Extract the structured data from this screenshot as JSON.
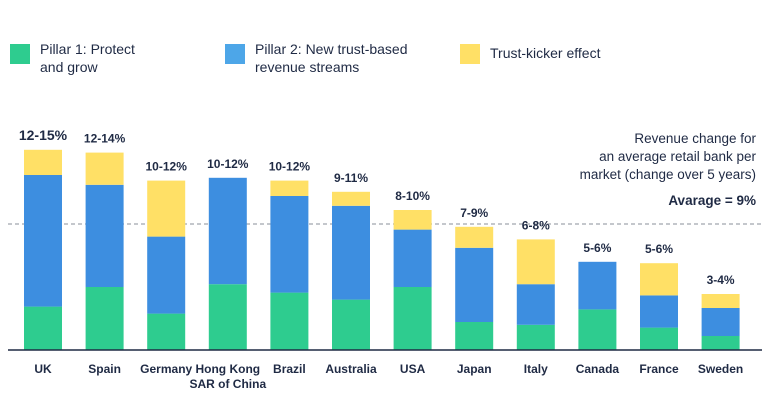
{
  "legend": {
    "items": [
      {
        "label": "Pillar 1: Protect\nand grow",
        "color": "#2ecc8f"
      },
      {
        "label": "Pillar 2: New trust-based\nrevenue streams",
        "color": "#4da6e8"
      },
      {
        "label": "Trust-kicker effect",
        "color": "#ffe066"
      }
    ]
  },
  "note": {
    "line1": "Revenue change for",
    "line2": "an average retail bank per",
    "line3": "market (change over 5 years)",
    "average_label": "Avarage = 9%"
  },
  "chart_data": {
    "type": "bar",
    "stacked": true,
    "categories": [
      "UK",
      "Spain",
      "Germany",
      "Hong Kong\nSAR of China",
      "Brazil",
      "Australia",
      "USA",
      "Japan",
      "Italy",
      "Canada",
      "France",
      "Sweden"
    ],
    "total_labels": [
      "12-15%",
      "12-14%",
      "10-12%",
      "10-12%",
      "10-12%",
      "9-11%",
      "8-10%",
      "7-9%",
      "6-8%",
      "5-6%",
      "5-6%",
      "3-4%"
    ],
    "series": [
      {
        "name": "Pillar 1: Protect and grow",
        "color": "#2ecc8f",
        "values": [
          3.1,
          4.5,
          2.6,
          4.7,
          4.1,
          3.6,
          4.5,
          2.0,
          1.8,
          2.9,
          1.6,
          1.0
        ]
      },
      {
        "name": "Pillar 2: New trust-based revenue streams",
        "color": "#4da6e8",
        "values": [
          9.4,
          7.3,
          5.5,
          7.6,
          6.9,
          6.7,
          4.1,
          5.3,
          2.9,
          3.4,
          2.3,
          2.0
        ]
      },
      {
        "name": "Trust-kicker effect",
        "color": "#ffe066",
        "values": [
          1.8,
          2.3,
          4.0,
          0,
          1.1,
          1.0,
          1.4,
          1.5,
          3.2,
          0,
          2.3,
          1.0
        ]
      }
    ],
    "ylim": [
      0,
      15
    ],
    "average": 9,
    "grid": false
  }
}
